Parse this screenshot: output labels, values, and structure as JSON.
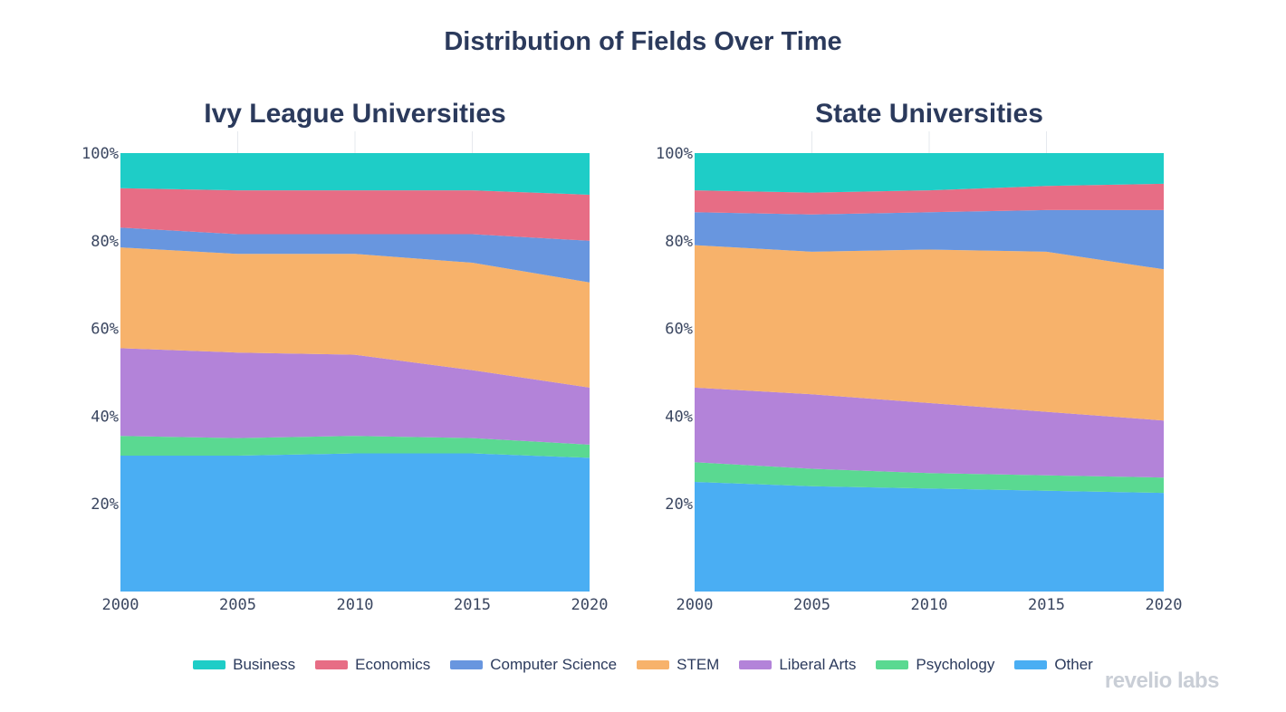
{
  "title": "Distribution of Fields Over Time",
  "brand": "revelio labs",
  "legend": [
    {
      "label": "Business",
      "color": "#1ecdc7"
    },
    {
      "label": "Economics",
      "color": "#e76d85"
    },
    {
      "label": "Computer Science",
      "color": "#6896df"
    },
    {
      "label": "STEM",
      "color": "#f7b26b"
    },
    {
      "label": "Liberal Arts",
      "color": "#b383d9"
    },
    {
      "label": "Psychology",
      "color": "#5ad991"
    },
    {
      "label": "Other",
      "color": "#4aaef3"
    }
  ],
  "chart_data": [
    {
      "type": "area",
      "stacked": true,
      "title": "Ivy League Universities",
      "x": [
        2000,
        2005,
        2010,
        2015,
        2020
      ],
      "x_ticks": [
        "2000",
        "2005",
        "2010",
        "2015",
        "2020"
      ],
      "y_ticks": [
        "20%",
        "40%",
        "60%",
        "80%",
        "100%"
      ],
      "ylim": [
        0,
        100
      ],
      "series": [
        {
          "name": "Other",
          "values": [
            31,
            31,
            31.5,
            31.5,
            30.5
          ]
        },
        {
          "name": "Psychology",
          "values": [
            4.5,
            4,
            4,
            3.5,
            3
          ]
        },
        {
          "name": "Liberal Arts",
          "values": [
            20,
            19.5,
            18.5,
            15.5,
            13
          ]
        },
        {
          "name": "STEM",
          "values": [
            23,
            22.5,
            23,
            24.5,
            24
          ]
        },
        {
          "name": "Computer Science",
          "values": [
            4.5,
            4.5,
            4.5,
            6.5,
            9.5
          ]
        },
        {
          "name": "Economics",
          "values": [
            9,
            10,
            10,
            10,
            10.5
          ]
        },
        {
          "name": "Business",
          "values": [
            8,
            8.5,
            8.5,
            8.5,
            9.5
          ]
        }
      ]
    },
    {
      "type": "area",
      "stacked": true,
      "title": "State Universities",
      "x": [
        2000,
        2005,
        2010,
        2015,
        2020
      ],
      "x_ticks": [
        "2000",
        "2005",
        "2010",
        "2015",
        "2020"
      ],
      "y_ticks": [
        "20%",
        "40%",
        "60%",
        "80%",
        "100%"
      ],
      "ylim": [
        0,
        100
      ],
      "series": [
        {
          "name": "Other",
          "values": [
            25,
            24,
            23.5,
            23,
            22.5
          ]
        },
        {
          "name": "Psychology",
          "values": [
            4.5,
            4,
            3.5,
            3.5,
            3.5
          ]
        },
        {
          "name": "Liberal Arts",
          "values": [
            17,
            17,
            16,
            14.5,
            13
          ]
        },
        {
          "name": "STEM",
          "values": [
            32.5,
            32.5,
            35,
            36.5,
            34.5
          ]
        },
        {
          "name": "Computer Science",
          "values": [
            7.5,
            8.5,
            8.5,
            9.5,
            13.5
          ]
        },
        {
          "name": "Economics",
          "values": [
            5,
            5,
            5,
            5.5,
            6
          ]
        },
        {
          "name": "Business",
          "values": [
            8.5,
            9,
            8.5,
            7.5,
            7
          ]
        }
      ]
    }
  ]
}
